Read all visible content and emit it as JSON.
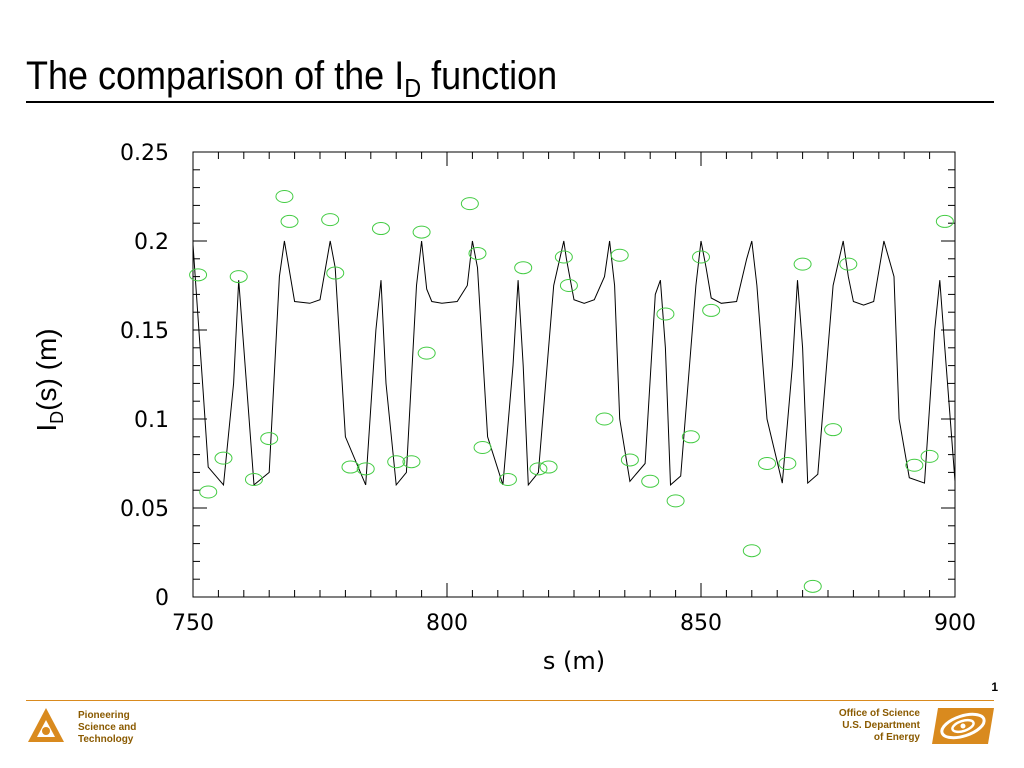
{
  "slide": {
    "title_main": "The comparison of the I",
    "title_sub": "D",
    "title_tail": " function",
    "page_number": "1"
  },
  "footer": {
    "left_lines": [
      "Pioneering",
      "Science and",
      "Technology"
    ],
    "right_lines": [
      "Office of Science",
      "U.S. Department",
      "of Energy"
    ],
    "accent_color": "#d98a1e",
    "text_color": "#8a5a00",
    "left_logo_icon": "argonne-logo-icon",
    "right_logo_icon": "doe-logo-icon"
  },
  "chart_data": {
    "type": "line",
    "xlabel": "s (m)",
    "ylabel_main": "I",
    "ylabel_sub": "D",
    "ylabel_tail": "(s) (m)",
    "xlim": [
      750,
      900
    ],
    "ylim": [
      0,
      0.25
    ],
    "xticks": [
      750,
      800,
      850,
      900
    ],
    "xtick_labels": [
      "750",
      "800",
      "850",
      "900"
    ],
    "yticks": [
      0,
      0.05,
      0.1,
      0.15,
      0.2,
      0.25
    ],
    "ytick_labels": [
      "0",
      "0.05",
      "0.1",
      "0.15",
      "0.2",
      "0.25"
    ],
    "grid": false,
    "series": [
      {
        "style": "black-line",
        "color": "#000000",
        "x": [
          750,
          752,
          753,
          756,
          758,
          759,
          760,
          762,
          765,
          767,
          768,
          770,
          773,
          775,
          777,
          778,
          780,
          784,
          786,
          787,
          788,
          790,
          792,
          794,
          795,
          796,
          797,
          799,
          802,
          804,
          805,
          806,
          808,
          811,
          813,
          814,
          815,
          816,
          818,
          821,
          823,
          823.5,
          825,
          827,
          829,
          831,
          832,
          833,
          834,
          836,
          839,
          841,
          842,
          843,
          844,
          846,
          849,
          850,
          851,
          852,
          854,
          857,
          859,
          860,
          861,
          863,
          866,
          868,
          869,
          870,
          871,
          873,
          876,
          878,
          879,
          880,
          882,
          884,
          886,
          888,
          889,
          891,
          894,
          896,
          897,
          898,
          900
        ],
        "y": [
          0.198,
          0.115,
          0.073,
          0.063,
          0.12,
          0.178,
          0.14,
          0.063,
          0.07,
          0.18,
          0.2,
          0.166,
          0.165,
          0.167,
          0.2,
          0.185,
          0.09,
          0.063,
          0.15,
          0.178,
          0.12,
          0.063,
          0.07,
          0.175,
          0.2,
          0.173,
          0.166,
          0.165,
          0.166,
          0.175,
          0.2,
          0.185,
          0.09,
          0.063,
          0.13,
          0.178,
          0.13,
          0.063,
          0.07,
          0.175,
          0.2,
          0.19,
          0.167,
          0.165,
          0.167,
          0.18,
          0.2,
          0.175,
          0.1,
          0.065,
          0.075,
          0.17,
          0.178,
          0.14,
          0.063,
          0.068,
          0.175,
          0.2,
          0.185,
          0.168,
          0.165,
          0.166,
          0.19,
          0.2,
          0.175,
          0.1,
          0.064,
          0.13,
          0.178,
          0.14,
          0.064,
          0.069,
          0.175,
          0.2,
          0.18,
          0.166,
          0.164,
          0.166,
          0.2,
          0.18,
          0.1,
          0.067,
          0.064,
          0.15,
          0.178,
          0.14,
          0.065
        ]
      },
      {
        "style": "green-circles",
        "color": "#44cc44",
        "x": [
          751,
          753,
          756,
          759,
          762,
          765,
          768,
          769,
          777,
          778,
          781,
          784,
          787,
          790,
          793,
          795,
          796,
          804.5,
          806,
          807,
          812,
          815,
          818,
          820,
          823,
          824,
          831,
          834,
          836,
          840,
          843,
          845,
          848,
          850,
          852,
          860,
          863,
          867,
          870,
          872,
          876,
          879,
          892,
          895,
          898
        ],
        "y": [
          0.181,
          0.059,
          0.078,
          0.18,
          0.066,
          0.089,
          0.225,
          0.211,
          0.212,
          0.182,
          0.073,
          0.072,
          0.207,
          0.076,
          0.076,
          0.205,
          0.137,
          0.221,
          0.193,
          0.084,
          0.066,
          0.185,
          0.072,
          0.073,
          0.191,
          0.175,
          0.1,
          0.192,
          0.077,
          0.065,
          0.159,
          0.054,
          0.09,
          0.191,
          0.161,
          0.026,
          0.075,
          0.075,
          0.187,
          0.006,
          0.094,
          0.187,
          0.074,
          0.079,
          0.211
        ]
      }
    ]
  }
}
